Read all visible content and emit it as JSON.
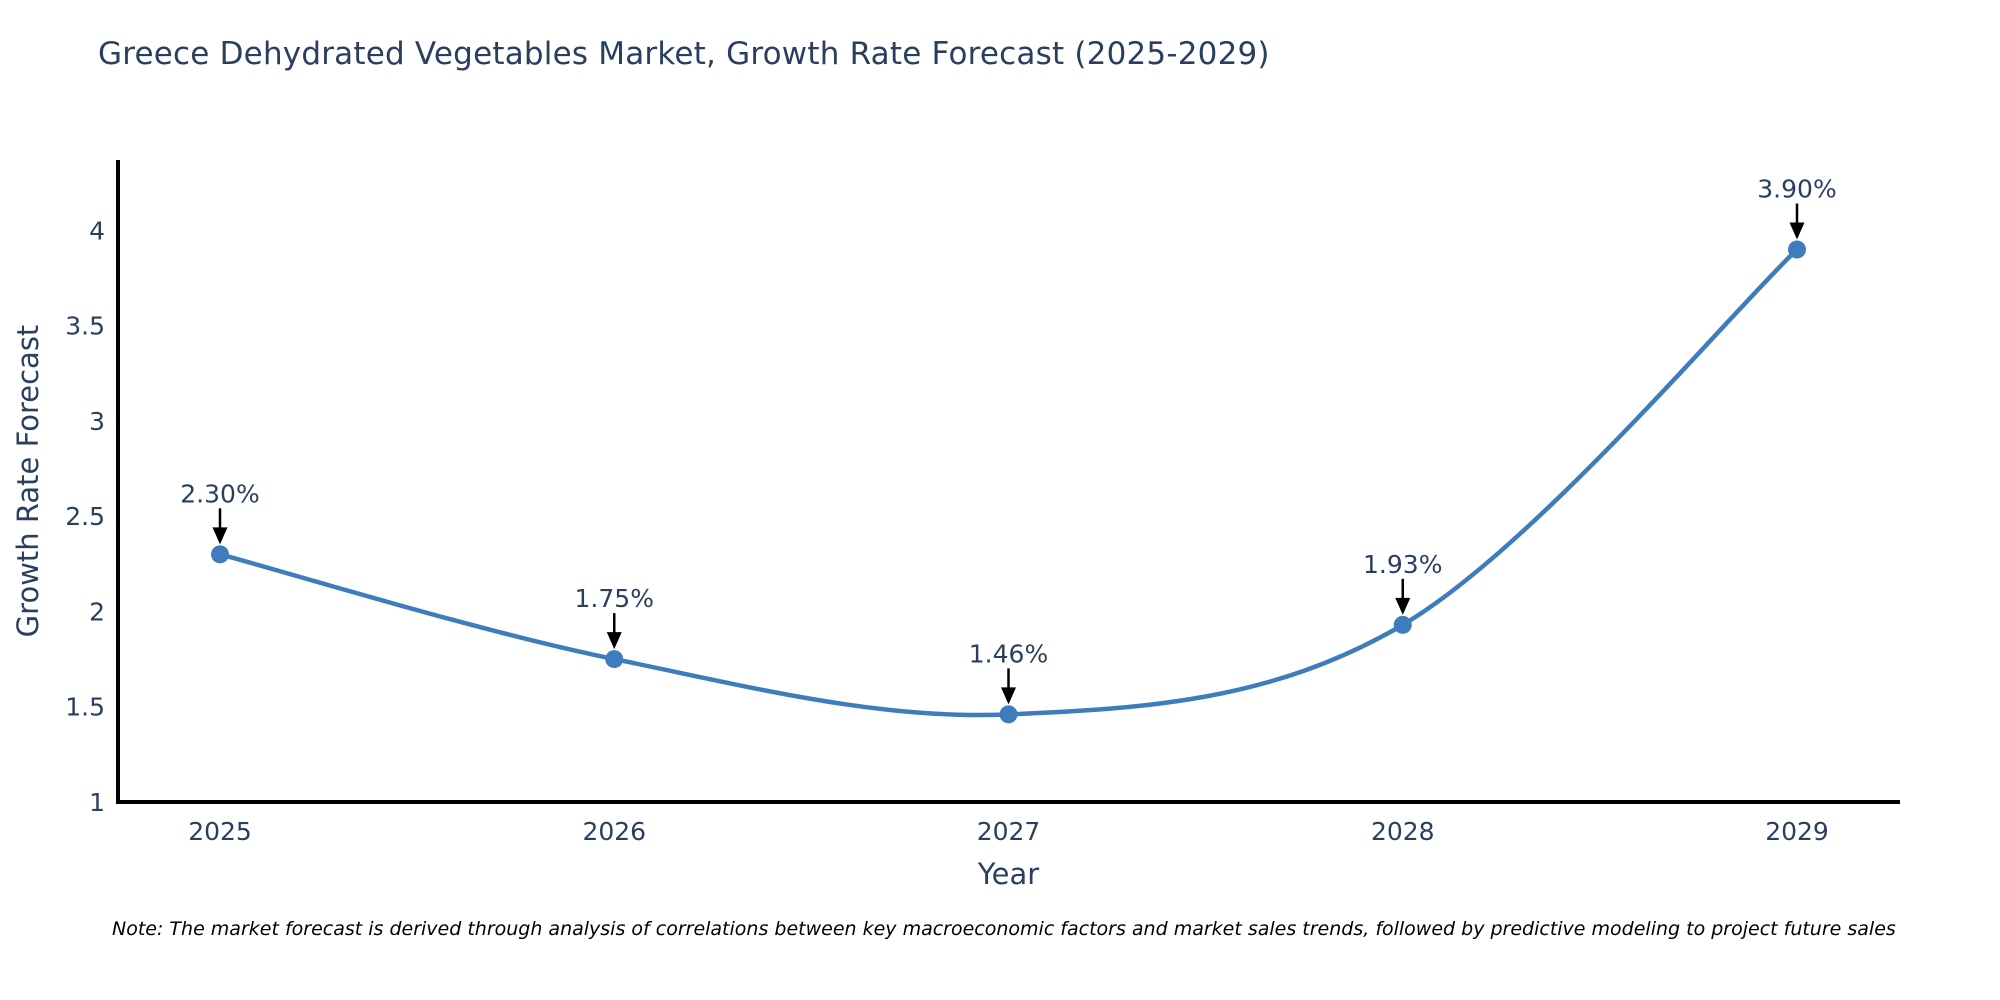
{
  "chart_data": {
    "type": "line",
    "title": "Greece Dehydrated Vegetables Market, Growth Rate Forecast (2025-2029)",
    "xlabel": "Year",
    "ylabel": "Growth Rate Forecast",
    "x": [
      2025,
      2026,
      2027,
      2028,
      2029
    ],
    "x_tick_labels": [
      "2025",
      "2026",
      "2027",
      "2028",
      "2029"
    ],
    "series": [
      {
        "name": "Growth Rate Forecast",
        "values": [
          2.3,
          1.75,
          1.46,
          1.93,
          3.9
        ]
      }
    ],
    "point_labels": [
      "2.30%",
      "1.75%",
      "1.46%",
      "1.93%",
      "3.90%"
    ],
    "yticks": [
      1,
      1.5,
      2,
      2.5,
      3,
      3.5,
      4
    ],
    "ytick_labels": [
      "1",
      "1.5",
      "2",
      "2.5",
      "3",
      "3.5",
      "4"
    ],
    "ylim": [
      1,
      4.37
    ],
    "line_shape": "spline",
    "grid": false,
    "legend_position": "none",
    "colors": {
      "line": "#3e7cbc",
      "marker": "#3e7cbc",
      "axis_line": "#000000",
      "tick_text": "#2a3f5f",
      "annotation_text": "#2a3f5f",
      "annotation_arrow": "#000000",
      "title_text": "#2a3f5f",
      "background": "#ffffff"
    },
    "note": "Note: The market forecast is derived through analysis of correlations between key macroeconomic factors and market sales trends, followed by predictive modeling to project future sales"
  }
}
